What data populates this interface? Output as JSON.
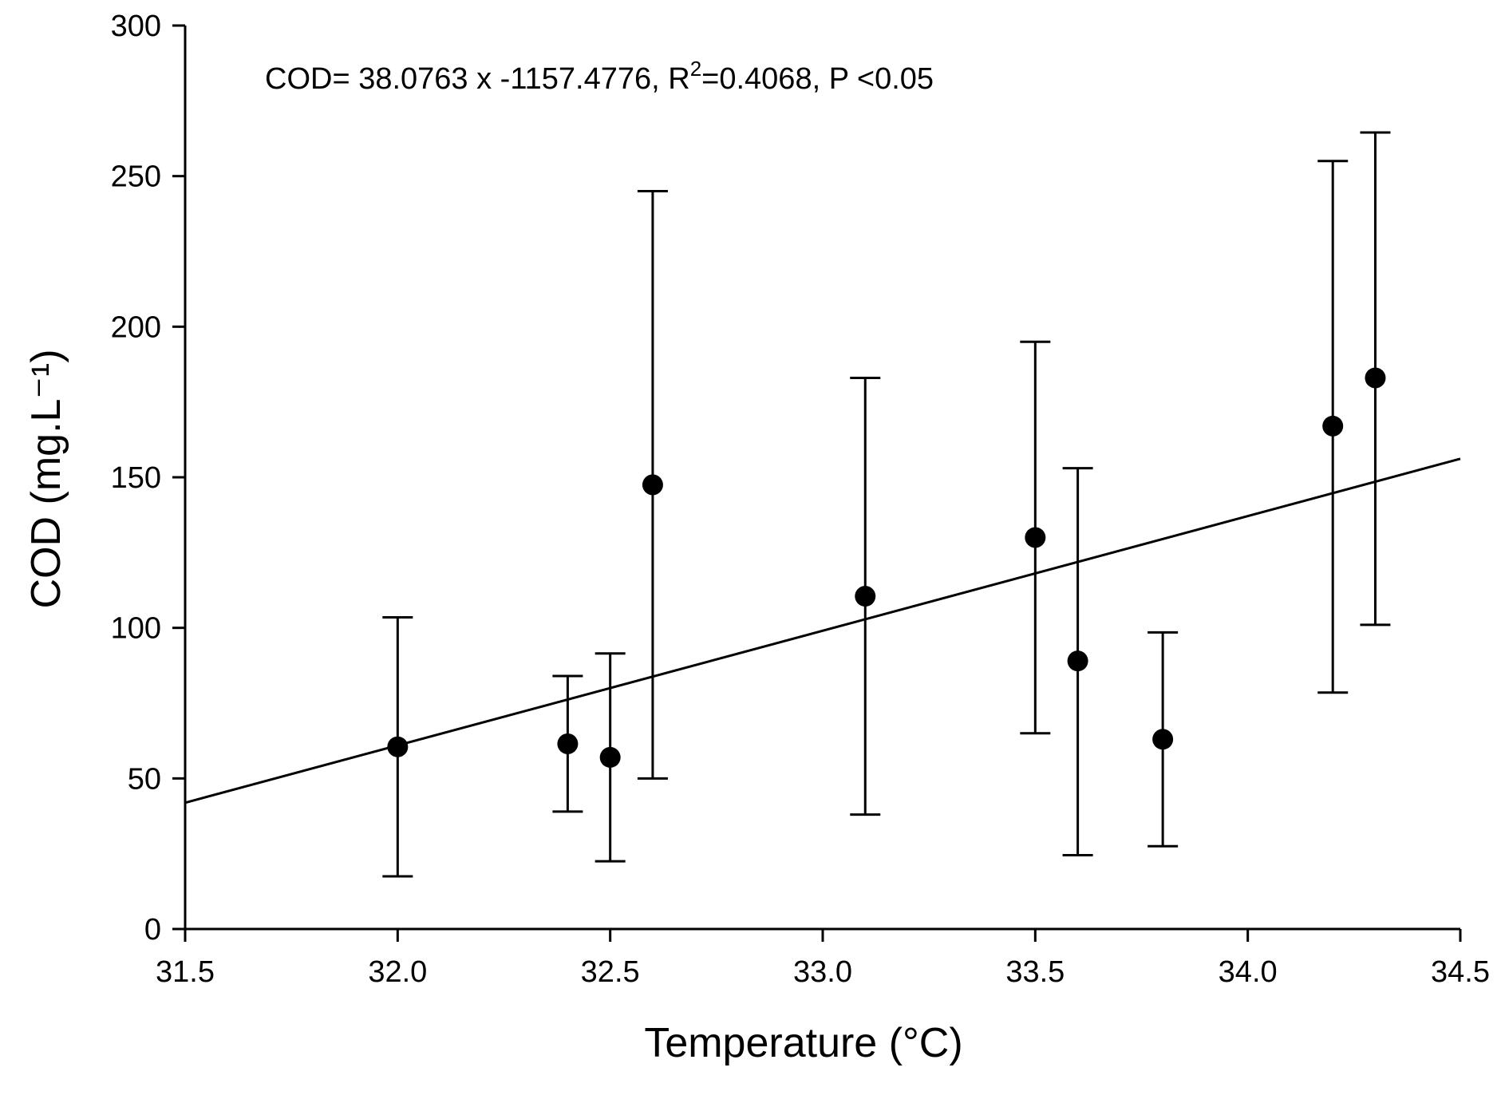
{
  "chart_data": {
    "type": "scatter",
    "title": "",
    "xlabel": "Temperature",
    "xlabel_unit": "(°C)",
    "ylabel": "COD",
    "ylabel_unit": "(mg.L⁻¹)",
    "xlim": [
      31.5,
      34.5
    ],
    "ylim": [
      0,
      300
    ],
    "x_ticks": [
      31.5,
      32.0,
      32.5,
      33.0,
      33.5,
      34.0,
      34.5
    ],
    "x_tick_labels": [
      "31.5",
      "32.0",
      "32.5",
      "33.0",
      "33.5",
      "34.0",
      "34.5"
    ],
    "y_ticks": [
      0,
      50,
      100,
      150,
      200,
      250,
      300
    ],
    "y_tick_labels": [
      "0",
      "50",
      "100",
      "150",
      "200",
      "250",
      "300"
    ],
    "grid": false,
    "series": [
      {
        "name": "COD",
        "marker": "filled-circle",
        "color": "#000000",
        "points": [
          {
            "x": 32.0,
            "y": 60.5,
            "err_low": 17.5,
            "err_high": 103.5
          },
          {
            "x": 32.4,
            "y": 61.5,
            "err_low": 39.0,
            "err_high": 84.0
          },
          {
            "x": 32.5,
            "y": 57.0,
            "err_low": 22.5,
            "err_high": 91.5
          },
          {
            "x": 32.6,
            "y": 147.5,
            "err_low": 50.0,
            "err_high": 245.0
          },
          {
            "x": 33.1,
            "y": 110.5,
            "err_low": 38.0,
            "err_high": 183.0
          },
          {
            "x": 33.5,
            "y": 130.0,
            "err_low": 65.0,
            "err_high": 195.0
          },
          {
            "x": 33.6,
            "y": 89.0,
            "err_low": 24.5,
            "err_high": 153.0
          },
          {
            "x": 33.8,
            "y": 63.0,
            "err_low": 27.5,
            "err_high": 98.5
          },
          {
            "x": 34.2,
            "y": 167.0,
            "err_low": 78.5,
            "err_high": 255.0
          },
          {
            "x": 34.3,
            "y": 183.0,
            "err_low": 101.0,
            "err_high": 264.5
          }
        ]
      }
    ],
    "regression": {
      "slope": 38.0763,
      "intercept": -1157.4776,
      "x_range": [
        31.5,
        34.5
      ]
    },
    "annotation": {
      "prefix": "COD= 38.0763 x -1157.4776, R",
      "superscript": "2",
      "suffix": "=0.4068, P <0.05"
    }
  }
}
